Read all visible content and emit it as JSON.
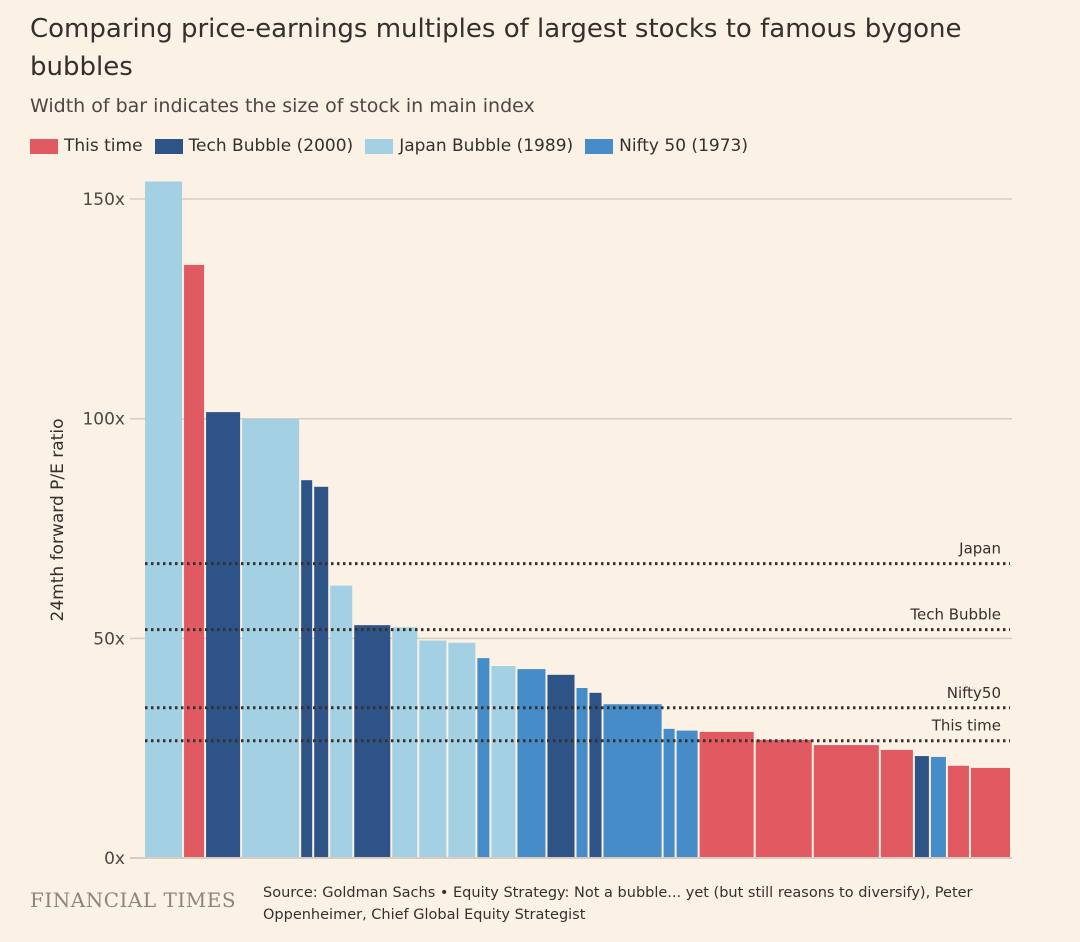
{
  "title": "Comparing price-earnings multiples of largest stocks to famous bygone bubbles",
  "subtitle": "Width of bar indicates the size of stock in main index",
  "legend": [
    {
      "label": "This time",
      "color": "#e15a62"
    },
    {
      "label": "Tech Bubble (2000)",
      "color": "#2e5387"
    },
    {
      "label": "Japan Bubble (1989)",
      "color": "#a3d0e3"
    },
    {
      "label": "Nifty 50 (1973)",
      "color": "#458cc8"
    }
  ],
  "logo": "FINANCIAL TIMES",
  "source": "Source: Goldman Sachs • Equity Strategy: Not a bubble... yet (but still reasons to diversify), Peter Oppenheimer, Chief Global Equity Strategist",
  "chart_data": {
    "type": "bar",
    "ylabel": "24mth forward P/E ratio",
    "ylim": [
      0,
      155
    ],
    "yticks": [
      {
        "value": 0,
        "label": "0x"
      },
      {
        "value": 50,
        "label": "50x"
      },
      {
        "value": 100,
        "label": "100x"
      },
      {
        "value": 150,
        "label": "150x"
      }
    ],
    "grid": true,
    "legend_placement": "top-left",
    "bars": [
      {
        "group": "Japan Bubble (1989)",
        "value": 154,
        "size": 37
      },
      {
        "group": "This time",
        "value": 135,
        "size": 20
      },
      {
        "group": "Tech Bubble (2000)",
        "value": 101.5,
        "size": 34
      },
      {
        "group": "Japan Bubble (1989)",
        "value": 100,
        "size": 57
      },
      {
        "group": "Tech Bubble (2000)",
        "value": 86,
        "size": 11
      },
      {
        "group": "Tech Bubble (2000)",
        "value": 84.5,
        "size": 14
      },
      {
        "group": "Japan Bubble (1989)",
        "value": 62,
        "size": 22
      },
      {
        "group": "Tech Bubble (2000)",
        "value": 53,
        "size": 36
      },
      {
        "group": "Japan Bubble (1989)",
        "value": 52.5,
        "size": 25
      },
      {
        "group": "Japan Bubble (1989)",
        "value": 49.5,
        "size": 27
      },
      {
        "group": "Japan Bubble (1989)",
        "value": 49,
        "size": 27
      },
      {
        "group": "Nifty 50 (1973)",
        "value": 45.5,
        "size": 12
      },
      {
        "group": "Japan Bubble (1989)",
        "value": 43.7,
        "size": 24
      },
      {
        "group": "Nifty 50 (1973)",
        "value": 43,
        "size": 28
      },
      {
        "group": "Tech Bubble (2000)",
        "value": 41.7,
        "size": 27
      },
      {
        "group": "Nifty 50 (1973)",
        "value": 38.7,
        "size": 11
      },
      {
        "group": "Tech Bubble (2000)",
        "value": 37.6,
        "size": 12
      },
      {
        "group": "Nifty 50 (1973)",
        "value": 35,
        "size": 58
      },
      {
        "group": "Nifty 50 (1973)",
        "value": 29.4,
        "size": 11
      },
      {
        "group": "Nifty 50 (1973)",
        "value": 29,
        "size": 21
      },
      {
        "group": "This time",
        "value": 28.7,
        "size": 54
      },
      {
        "group": "This time",
        "value": 26.9,
        "size": 56
      },
      {
        "group": "This time",
        "value": 25.7,
        "size": 65
      },
      {
        "group": "This time",
        "value": 24.6,
        "size": 32
      },
      {
        "group": "Tech Bubble (2000)",
        "value": 23.2,
        "size": 14
      },
      {
        "group": "Nifty 50 (1973)",
        "value": 23,
        "size": 15
      },
      {
        "group": "This time",
        "value": 21,
        "size": 21
      },
      {
        "group": "This time",
        "value": 20.5,
        "size": 39
      }
    ],
    "reference_lines": [
      {
        "label": "Japan",
        "value": 67
      },
      {
        "label": "Tech Bubble",
        "value": 52
      },
      {
        "label": "Nifty50",
        "value": 34.2
      },
      {
        "label": "This time",
        "value": 26.7
      }
    ]
  }
}
